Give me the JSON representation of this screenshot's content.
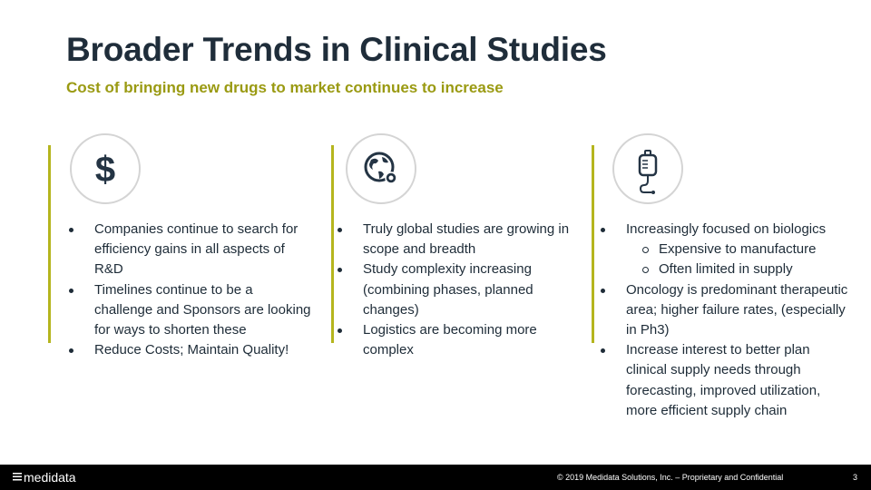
{
  "title": "Broader Trends in Clinical Studies",
  "subtitle": "Cost of bringing new drugs to market continues to increase",
  "columns": [
    {
      "icon": "dollar-icon",
      "bullets": [
        {
          "text": "Companies continue to search for efficiency gains in all aspects of R&D"
        },
        {
          "text": "Timelines continue to be a challenge and Sponsors are looking for ways to shorten these"
        },
        {
          "text": "Reduce Costs; Maintain Quality!"
        }
      ]
    },
    {
      "icon": "globe-icon",
      "bullets": [
        {
          "text": "Truly global studies are growing in scope and breadth"
        },
        {
          "text": "Study complexity increasing (combining phases, planned changes)"
        },
        {
          "text": "Logistics are becoming more complex"
        }
      ]
    },
    {
      "icon": "iv-bag-icon",
      "bullets": [
        {
          "text": "Increasingly focused on biologics",
          "sub": [
            "Expensive to manufacture",
            "Often limited in supply"
          ]
        },
        {
          "text": "Oncology is predominant therapeutic area; higher failure rates, (especially in Ph3)"
        },
        {
          "text": "Increase interest to better plan clinical supply needs through forecasting, improved utilization, more efficient supply chain"
        }
      ]
    }
  ],
  "footer": {
    "logo_text": "medidata",
    "copyright": "© 2019 Medidata Solutions, Inc. – Proprietary and Confidential",
    "page_number": "3"
  },
  "colors": {
    "accent": "#b5b51e",
    "subtitle": "#9a9a12",
    "title": "#1f2d3a",
    "footer_bg": "#000000"
  }
}
